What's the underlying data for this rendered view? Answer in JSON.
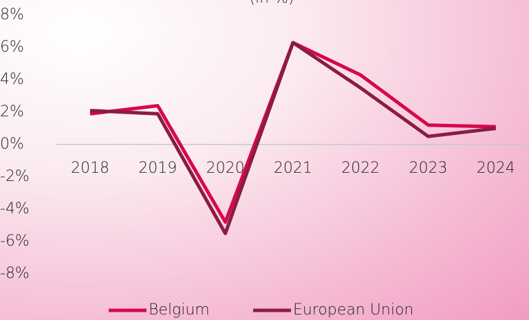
{
  "chart_data": {
    "type": "line",
    "subtitle": "(in %)",
    "categories": [
      "2018",
      "2019",
      "2020",
      "2021",
      "2022",
      "2023",
      "2024"
    ],
    "series": [
      {
        "name": "Belgium",
        "color": "#d6094a",
        "values": [
          1.9,
          2.4,
          -4.8,
          6.3,
          4.3,
          1.2,
          1.1
        ]
      },
      {
        "name": "European Union",
        "color": "#8a1c42",
        "values": [
          2.1,
          1.9,
          -5.5,
          6.3,
          3.5,
          0.5,
          1.0
        ]
      }
    ],
    "ylim": [
      -8,
      8
    ],
    "yticks": [
      {
        "value": -8,
        "label": "-8%"
      },
      {
        "value": -6,
        "label": "-6%"
      },
      {
        "value": -4,
        "label": "-4%"
      },
      {
        "value": -2,
        "label": "-2%"
      },
      {
        "value": 0,
        "label": "0%"
      },
      {
        "value": 2,
        "label": "2%"
      },
      {
        "value": 4,
        "label": "4%"
      },
      {
        "value": 6,
        "label": "6%"
      },
      {
        "value": 8,
        "label": "8%"
      }
    ],
    "legend": "bottom"
  }
}
